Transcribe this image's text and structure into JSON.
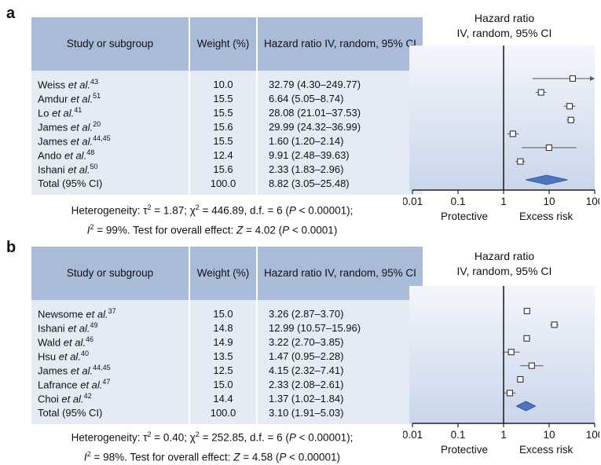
{
  "panels": [
    {
      "label": "a",
      "headers": {
        "study": "Study or subgroup",
        "weight": "Weight (%)",
        "hr": "Hazard ratio IV, random, 95% CI"
      },
      "rows": [
        {
          "name": "Weiss",
          "suffix": "et al.",
          "ref": "43",
          "weight": "10.0",
          "hr": "32.79 (4.30–249.77)"
        },
        {
          "name": "Amdur",
          "suffix": "et al.",
          "ref": "51",
          "weight": "15.5",
          "hr": "6.64 (5.05–8.74)"
        },
        {
          "name": "Lo",
          "suffix": "et al.",
          "ref": "41",
          "weight": "15.5",
          "hr": "28.08 (21.01–37.53)"
        },
        {
          "name": "James",
          "suffix": "et al.",
          "ref": "20",
          "weight": "15.6",
          "hr": "29.99 (24.32–36.99)"
        },
        {
          "name": "James",
          "suffix": "et al.",
          "ref": "44,45",
          "weight": "15.5",
          "hr": "1.60 (1.20–2.14)"
        },
        {
          "name": "Ando",
          "suffix": "et al.",
          "ref": "48",
          "weight": "12.4",
          "hr": "9.91 (2.48–39.63)"
        },
        {
          "name": "Ishani",
          "suffix": "et al.",
          "ref": "50",
          "weight": "15.6",
          "hr": "2.33 (1.83–2.96)"
        }
      ],
      "total": {
        "name": "Total (95% CI)",
        "weight": "100.0",
        "hr": "8.82 (3.05–25.48)"
      },
      "heterogeneity": {
        "line1": {
          "a": "Heterogeneity: τ",
          "b": " = 1.87; χ",
          "c": " = 446.89, d.f. = 6 (",
          "d": "P",
          "e": " < 0.00001);"
        },
        "line2": {
          "a": "I",
          "b": " = 99%. Test for overall effect: ",
          "c": "Z",
          "d": " = 4.02 (",
          "e": "P",
          "f": " < 0.0001)"
        }
      },
      "plot_title": {
        "line1": "Hazard ratio",
        "line2": "IV, random, 95% CI"
      },
      "footer": {
        "left": "Protective",
        "right": "Excess risk"
      }
    },
    {
      "label": "b",
      "headers": {
        "study": "Study or subgroup",
        "weight": "Weight (%)",
        "hr": "Hazard ratio IV, random, 95% CI"
      },
      "rows": [
        {
          "name": "Newsome",
          "suffix": "et al.",
          "ref": "37",
          "weight": "15.0",
          "hr": "3.26 (2.87–3.70)"
        },
        {
          "name": "Ishani",
          "suffix": "et al.",
          "ref": "49",
          "weight": "14.8",
          "hr": "12.99 (10.57–15.96)"
        },
        {
          "name": "Wald",
          "suffix": "et al.",
          "ref": "46",
          "weight": "14.9",
          "hr": "3.22 (2.70–3.85)"
        },
        {
          "name": "Hsu",
          "suffix": "et al.",
          "ref": "40",
          "weight": "13.5",
          "hr": "1.47 (0.95–2.28)"
        },
        {
          "name": "James",
          "suffix": "et al.",
          "ref": "44,45",
          "weight": "12.5",
          "hr": "4.15 (2.32–7.41)"
        },
        {
          "name": "Lafrance",
          "suffix": "et al.",
          "ref": "47",
          "weight": "15.0",
          "hr": "2.33 (2.08–2.61)"
        },
        {
          "name": "Choi",
          "suffix": "et al.",
          "ref": "42",
          "weight": "14.4",
          "hr": "1.37 (1.02–1.84)"
        }
      ],
      "total": {
        "name": "Total (95% CI)",
        "weight": "100.0",
        "hr": "3.10 (1.91–5.03)"
      },
      "heterogeneity": {
        "line1": {
          "a": "Heterogeneity: τ",
          "b": " = 0.40; χ",
          "c": " = 252.85, d.f. = 6 (",
          "d": "P",
          "e": " < 0.00001);"
        },
        "line2": {
          "a": "I",
          "b": " = 98%. Test for overall effect: ",
          "c": "Z",
          "d": " = 4.58 (",
          "e": "P",
          "f": " < 0.00001)"
        }
      },
      "plot_title": {
        "line1": "Hazard ratio",
        "line2": "IV, random, 95% CI"
      },
      "footer": {
        "left": "Protective",
        "right": "Excess risk"
      }
    }
  ],
  "chart_data": [
    {
      "type": "forest",
      "panel": "a",
      "x_scale": "log",
      "xlim": [
        0.01,
        100
      ],
      "xticks": [
        "0.01",
        "0.1",
        "1",
        "10",
        "100"
      ],
      "reference_line": 1,
      "studies": [
        {
          "label": "Weiss et al.",
          "hr": 32.79,
          "lo": 4.3,
          "hi": 249.77
        },
        {
          "label": "Amdur et al.",
          "hr": 6.64,
          "lo": 5.05,
          "hi": 8.74
        },
        {
          "label": "Lo et al.",
          "hr": 28.08,
          "lo": 21.01,
          "hi": 37.53
        },
        {
          "label": "James et al.",
          "hr": 29.99,
          "lo": 24.32,
          "hi": 36.99
        },
        {
          "label": "James et al.",
          "hr": 1.6,
          "lo": 1.2,
          "hi": 2.14
        },
        {
          "label": "Ando et al.",
          "hr": 9.91,
          "lo": 2.48,
          "hi": 39.63
        },
        {
          "label": "Ishani et al.",
          "hr": 2.33,
          "lo": 1.83,
          "hi": 2.96
        }
      ],
      "total": {
        "hr": 8.82,
        "lo": 3.05,
        "hi": 25.48
      }
    },
    {
      "type": "forest",
      "panel": "b",
      "x_scale": "log",
      "xlim": [
        0.01,
        100
      ],
      "xticks": [
        "0.01",
        "0.1",
        "1",
        "10",
        "100"
      ],
      "reference_line": 1,
      "studies": [
        {
          "label": "Newsome et al.",
          "hr": 3.26,
          "lo": 2.87,
          "hi": 3.7
        },
        {
          "label": "Ishani et al.",
          "hr": 12.99,
          "lo": 10.57,
          "hi": 15.96
        },
        {
          "label": "Wald et al.",
          "hr": 3.22,
          "lo": 2.7,
          "hi": 3.85
        },
        {
          "label": "Hsu et al.",
          "hr": 1.47,
          "lo": 0.95,
          "hi": 2.28
        },
        {
          "label": "James et al.",
          "hr": 4.15,
          "lo": 2.32,
          "hi": 7.41
        },
        {
          "label": "Lafrance et al.",
          "hr": 2.33,
          "lo": 2.08,
          "hi": 2.61
        },
        {
          "label": "Choi et al.",
          "hr": 1.37,
          "lo": 1.02,
          "hi": 1.84
        }
      ],
      "total": {
        "hr": 3.1,
        "lo": 1.91,
        "hi": 5.03
      }
    }
  ],
  "colors": {
    "header_fill": "#a9bbd9",
    "row_fill": "#e4ebf5",
    "plot_fill_top": "#f3f6fb",
    "plot_fill_bottom": "#c9d6ea",
    "diamond": "#4f74c0",
    "marker_stroke": "#333333",
    "axis": "#222222"
  }
}
